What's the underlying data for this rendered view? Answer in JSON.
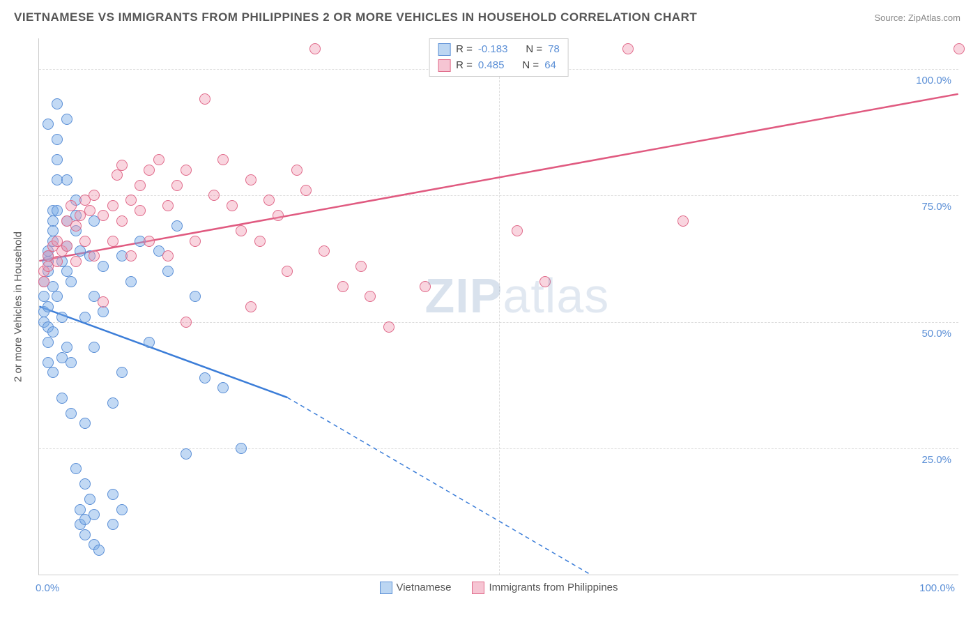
{
  "title": "VIETNAMESE VS IMMIGRANTS FROM PHILIPPINES 2 OR MORE VEHICLES IN HOUSEHOLD CORRELATION CHART",
  "source_prefix": "Source: ",
  "source_link": "ZipAtlas.com",
  "watermark_bold": "ZIP",
  "watermark_rest": "atlas",
  "chart": {
    "type": "scatter",
    "y_axis_title": "2 or more Vehicles in Household",
    "xlim": [
      0,
      100
    ],
    "ylim": [
      0,
      106
    ],
    "x_ticks": [
      0,
      50,
      100
    ],
    "x_tick_labels": [
      "0.0%",
      "",
      "100.0%"
    ],
    "x_tick_label_left": "0.0%",
    "x_tick_label_right": "100.0%",
    "y_ticks": [
      25,
      50,
      75,
      100
    ],
    "y_tick_labels": [
      "25.0%",
      "50.0%",
      "75.0%",
      "100.0%"
    ],
    "grid_color": "#dddddd",
    "axis_color": "#cccccc",
    "background_color": "#ffffff",
    "marker_radius": 8,
    "marker_stroke_width": 1,
    "series": [
      {
        "name": "Vietnamese",
        "fill": "rgba(120,170,230,0.45)",
        "stroke": "#5b8fd6",
        "swatch_fill": "#bcd6f2",
        "swatch_border": "#5b8fd6",
        "R": "-0.183",
        "N": "78",
        "trend": {
          "solid": {
            "x1": 0,
            "y1": 53,
            "x2": 27,
            "y2": 35
          },
          "dashed": {
            "x1": 27,
            "y1": 35,
            "x2": 60,
            "y2": 0
          },
          "color": "#3b7dd8",
          "width": 2.5,
          "dash": "6,5"
        },
        "points": [
          [
            0.5,
            58
          ],
          [
            0.5,
            55
          ],
          [
            0.5,
            52
          ],
          [
            0.5,
            50
          ],
          [
            1,
            64
          ],
          [
            1,
            60
          ],
          [
            1,
            63
          ],
          [
            1,
            62
          ],
          [
            1,
            53
          ],
          [
            1,
            49
          ],
          [
            1,
            46
          ],
          [
            1,
            42
          ],
          [
            1.5,
            72
          ],
          [
            1.5,
            70
          ],
          [
            1.5,
            68
          ],
          [
            1.5,
            66
          ],
          [
            1.5,
            57
          ],
          [
            1.5,
            48
          ],
          [
            1.5,
            40
          ],
          [
            2,
            82
          ],
          [
            2,
            78
          ],
          [
            2,
            93
          ],
          [
            2,
            72
          ],
          [
            2,
            55
          ],
          [
            2.5,
            51
          ],
          [
            2.5,
            62
          ],
          [
            2.5,
            43
          ],
          [
            2.5,
            35
          ],
          [
            3,
            90
          ],
          [
            3,
            65
          ],
          [
            3,
            60
          ],
          [
            3,
            70
          ],
          [
            3,
            45
          ],
          [
            3.5,
            58
          ],
          [
            3.5,
            42
          ],
          [
            3.5,
            32
          ],
          [
            4,
            71
          ],
          [
            4,
            68
          ],
          [
            4,
            21
          ],
          [
            4.5,
            64
          ],
          [
            4.5,
            13
          ],
          [
            4.5,
            10
          ],
          [
            5,
            51
          ],
          [
            5,
            30
          ],
          [
            5,
            18
          ],
          [
            5,
            11
          ],
          [
            5,
            8
          ],
          [
            5.5,
            63
          ],
          [
            5.5,
            15
          ],
          [
            6,
            70
          ],
          [
            6,
            45
          ],
          [
            6,
            12
          ],
          [
            6,
            6
          ],
          [
            6.5,
            5
          ],
          [
            7,
            61
          ],
          [
            7,
            52
          ],
          [
            8,
            34
          ],
          [
            8,
            16
          ],
          [
            8,
            10
          ],
          [
            9,
            63
          ],
          [
            9,
            40
          ],
          [
            9,
            13
          ],
          [
            10,
            58
          ],
          [
            11,
            66
          ],
          [
            12,
            46
          ],
          [
            13,
            64
          ],
          [
            14,
            60
          ],
          [
            15,
            69
          ],
          [
            16,
            24
          ],
          [
            17,
            55
          ],
          [
            18,
            39
          ],
          [
            20,
            37
          ],
          [
            22,
            25
          ],
          [
            1,
            89
          ],
          [
            2,
            86
          ],
          [
            4,
            74
          ],
          [
            6,
            55
          ],
          [
            3,
            78
          ]
        ]
      },
      {
        "name": "Immigrants from Philippines",
        "fill": "rgba(240,150,175,0.40)",
        "stroke": "#e06a8a",
        "swatch_fill": "#f6c5d3",
        "swatch_border": "#e06a8a",
        "R": "0.485",
        "N": "64",
        "trend": {
          "solid": {
            "x1": 0,
            "y1": 62,
            "x2": 100,
            "y2": 95
          },
          "dashed": null,
          "color": "#e05a80",
          "width": 2.5
        },
        "points": [
          [
            0.5,
            60
          ],
          [
            0.5,
            58
          ],
          [
            1,
            63
          ],
          [
            1,
            61
          ],
          [
            1.5,
            65
          ],
          [
            2,
            66
          ],
          [
            2,
            62
          ],
          [
            2.5,
            64
          ],
          [
            3,
            70
          ],
          [
            3,
            65
          ],
          [
            3.5,
            73
          ],
          [
            4,
            69
          ],
          [
            4,
            62
          ],
          [
            4.5,
            71
          ],
          [
            5,
            74
          ],
          [
            5,
            66
          ],
          [
            5.5,
            72
          ],
          [
            6,
            75
          ],
          [
            6,
            63
          ],
          [
            7,
            71
          ],
          [
            7,
            54
          ],
          [
            8,
            66
          ],
          [
            8,
            73
          ],
          [
            8.5,
            79
          ],
          [
            9,
            81
          ],
          [
            9,
            70
          ],
          [
            10,
            74
          ],
          [
            10,
            63
          ],
          [
            11,
            72
          ],
          [
            11,
            77
          ],
          [
            12,
            66
          ],
          [
            12,
            80
          ],
          [
            13,
            82
          ],
          [
            14,
            63
          ],
          [
            14,
            73
          ],
          [
            15,
            77
          ],
          [
            16,
            80
          ],
          [
            17,
            66
          ],
          [
            18,
            94
          ],
          [
            19,
            75
          ],
          [
            20,
            82
          ],
          [
            21,
            73
          ],
          [
            22,
            68
          ],
          [
            23,
            78
          ],
          [
            24,
            66
          ],
          [
            25,
            74
          ],
          [
            26,
            71
          ],
          [
            27,
            60
          ],
          [
            28,
            80
          ],
          [
            29,
            76
          ],
          [
            30,
            104
          ],
          [
            31,
            64
          ],
          [
            33,
            57
          ],
          [
            35,
            61
          ],
          [
            36,
            55
          ],
          [
            38,
            49
          ],
          [
            42,
            57
          ],
          [
            52,
            68
          ],
          [
            55,
            58
          ],
          [
            64,
            104
          ],
          [
            70,
            70
          ],
          [
            100,
            104
          ],
          [
            16,
            50
          ],
          [
            23,
            53
          ]
        ]
      }
    ],
    "stats_labels": {
      "R": "R  =",
      "N": "N  ="
    },
    "bottom_legend_labels": [
      "Vietnamese",
      "Immigrants from Philippines"
    ]
  }
}
